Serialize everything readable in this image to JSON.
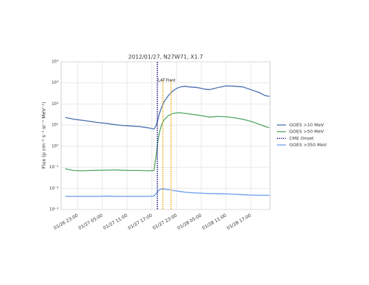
{
  "chart_data": {
    "type": "line",
    "title": "2012/01/27, N27W71, X1.7",
    "y_label": "Flux (p cm⁻² s⁻¹ sr⁻¹ MeV⁻¹)",
    "log_y": true,
    "grid": true,
    "legend": "right",
    "x": [
      "01/26 20:00",
      "01/26 22:00",
      "01/27 00:00",
      "01/27 02:00",
      "01/27 04:00",
      "01/27 06:00",
      "01/27 08:00",
      "01/27 10:00",
      "01/27 12:00",
      "01/27 14:00",
      "01/27 16:00",
      "01/27 17:30",
      "01/27 18:00",
      "01/27 18:30",
      "01/27 19:00",
      "01/27 19:30",
      "01/27 20:00",
      "01/27 21:00",
      "01/27 22:00",
      "01/27 23:00",
      "01/28 00:00",
      "01/28 01:00",
      "01/28 02:00",
      "01/28 04:00",
      "01/28 06:00",
      "01/28 07:00",
      "01/28 09:00",
      "01/28 11:00",
      "01/28 13:00",
      "01/28 15:00",
      "01/28 17:00",
      "01/28 19:00",
      "01/28 20:30",
      "01/28 21:30"
    ],
    "series": [
      {
        "name": "GOES >10 MeV",
        "color": "#4c72b0",
        "values": [
          23,
          19,
          17,
          15,
          13,
          12,
          10.5,
          9.5,
          9,
          8.5,
          7.5,
          6.5,
          9,
          20,
          45,
          80,
          130,
          250,
          400,
          550,
          650,
          700,
          650,
          600,
          500,
          480,
          600,
          720,
          700,
          650,
          480,
          350,
          250,
          230
        ]
      },
      {
        "name": "GOES >50 MeV",
        "color": "#55a868",
        "values": [
          0.085,
          0.07,
          0.068,
          0.07,
          0.072,
          0.073,
          0.075,
          0.072,
          0.07,
          0.07,
          0.068,
          0.07,
          0.3,
          2,
          6,
          12,
          18,
          28,
          35,
          38,
          38,
          36,
          34,
          30,
          26,
          24,
          26,
          25,
          22,
          19,
          15,
          11,
          8.5,
          7.5
        ]
      },
      {
        "name": "GOES >350 MeV",
        "color": "#6d9eeb",
        "values": [
          0.0042,
          0.0042,
          0.0042,
          0.0042,
          0.0042,
          0.0043,
          0.0042,
          0.0042,
          0.0042,
          0.0042,
          0.0042,
          0.0043,
          0.0055,
          0.0075,
          0.009,
          0.0095,
          0.0093,
          0.0088,
          0.008,
          0.0075,
          0.007,
          0.0066,
          0.0063,
          0.006,
          0.0058,
          0.0057,
          0.0056,
          0.0055,
          0.0053,
          0.005,
          0.0048,
          0.0047,
          0.0047,
          0.0047
        ]
      }
    ],
    "vlines": [
      {
        "name": "CME Onset",
        "x": "01/27 18:20",
        "color": "#000080"
      },
      {
        "x": "01/27 19:40",
        "color": "#f0a30a"
      },
      {
        "x": "01/27 21:40",
        "color": "#f0a30a"
      }
    ],
    "annotation": {
      "text": "LAT Flare",
      "x": "01/27 18:30"
    },
    "xlim": [
      "01/26 19:00",
      "01/28 21:40"
    ],
    "xticks": [
      "01/26 23:00",
      "01/27 05:00",
      "01/27 11:00",
      "01/27 17:00",
      "01/27 23:00",
      "01/28 05:00",
      "01/28 11:00",
      "01/28 17:00"
    ],
    "ylim": [
      0.001,
      10000
    ],
    "yticks": [
      {
        "value": 10000,
        "label": "10⁴"
      },
      {
        "value": 1000,
        "label": "10³"
      },
      {
        "value": 100,
        "label": "10²"
      },
      {
        "value": 10,
        "label": "10¹"
      },
      {
        "value": 1,
        "label": "10⁰"
      },
      {
        "value": 0.1,
        "label": "10⁻¹"
      },
      {
        "value": 0.01,
        "label": "10⁻²"
      },
      {
        "value": 0.001,
        "label": "10⁻³"
      }
    ]
  }
}
